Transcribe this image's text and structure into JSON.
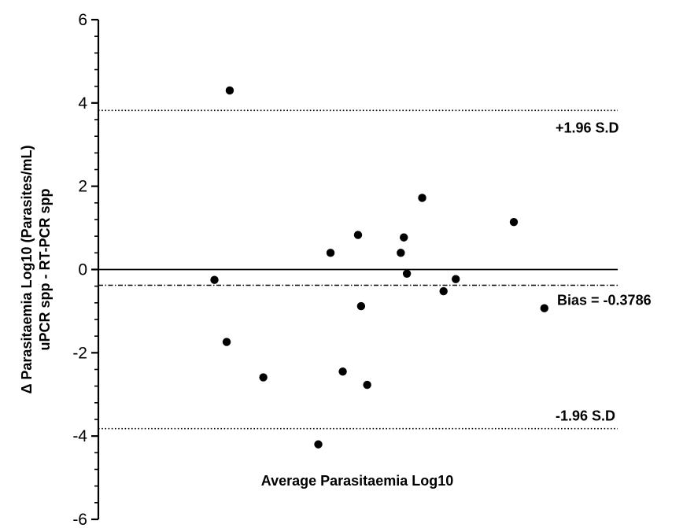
{
  "chart_data": {
    "type": "scatter",
    "xlabel": "Average Parasitaemia Log10",
    "ylabel_lines": [
      "Δ Parasitaemia Log10 (Parasites/mL)",
      "uPCR spp - RT-PCR spp"
    ],
    "ylim": [
      -6,
      6
    ],
    "y_major_ticks": [
      6,
      4,
      2,
      0,
      -2,
      -4,
      -6
    ],
    "grid": false,
    "x_tick_labels_shown": false,
    "reference_lines": [
      {
        "name": "upper_loa",
        "label": "+1.96 S.D",
        "y": 3.82,
        "style": "dotted"
      },
      {
        "name": "zero",
        "label": "",
        "y": 0,
        "style": "solid"
      },
      {
        "name": "bias",
        "label": "Bias = -0.3786",
        "y": -0.3786,
        "style": "dash-dot"
      },
      {
        "name": "lower_loa",
        "label": "-1.96 S.D",
        "y": -3.82,
        "style": "dotted"
      }
    ],
    "points": [
      {
        "x": 0.63,
        "y": 4.3
      },
      {
        "x": 0.58,
        "y": -0.25
      },
      {
        "x": 0.62,
        "y": -1.74
      },
      {
        "x": 0.74,
        "y": -2.59
      },
      {
        "x": 0.92,
        "y": -4.2
      },
      {
        "x": 0.96,
        "y": 0.4
      },
      {
        "x": 1.0,
        "y": -2.45
      },
      {
        "x": 1.05,
        "y": 0.83
      },
      {
        "x": 1.06,
        "y": -0.88
      },
      {
        "x": 1.08,
        "y": -2.77
      },
      {
        "x": 1.19,
        "y": 0.4
      },
      {
        "x": 1.2,
        "y": 0.77
      },
      {
        "x": 1.21,
        "y": -0.1
      },
      {
        "x": 1.26,
        "y": 1.72
      },
      {
        "x": 1.33,
        "y": -0.52
      },
      {
        "x": 1.37,
        "y": -0.23
      },
      {
        "x": 1.56,
        "y": 1.14
      },
      {
        "x": 1.66,
        "y": -0.93
      }
    ],
    "xlim": [
      0.2,
      1.9
    ]
  }
}
